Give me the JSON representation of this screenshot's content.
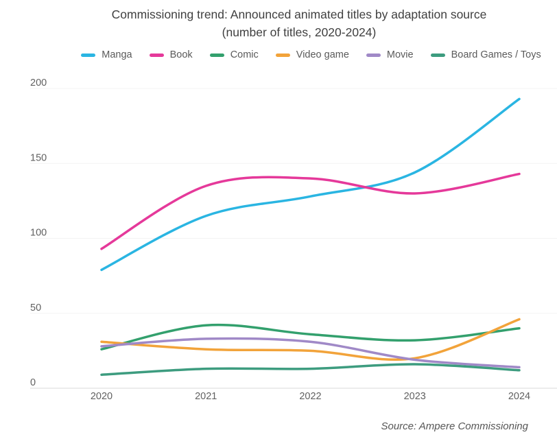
{
  "title": {
    "line1": "Commissioning trend: Announced animated titles by adaptation source",
    "line2": "(number of titles, 2020-2024)"
  },
  "source_note": "Source: Ampere Commissioning",
  "axis": {
    "tick_color": "#616161",
    "grid_color": "#f3f3f3",
    "baseline_color": "#d9d9d9"
  },
  "chart_data": {
    "type": "line",
    "smooth": true,
    "grid": true,
    "legend_position": "top",
    "title": "Commissioning trend: Announced animated titles by adaptation source (number of titles, 2020-2024)",
    "xlabel": "",
    "ylabel": "",
    "categories": [
      "2020",
      "2021",
      "2022",
      "2023",
      "2024"
    ],
    "ylim": [
      0,
      200
    ],
    "yticks": [
      0,
      50,
      100,
      150,
      200
    ],
    "series": [
      {
        "name": "Manga",
        "color": "#2ab5e2",
        "values": [
          79,
          115,
          128,
          144,
          193
        ]
      },
      {
        "name": "Book",
        "color": "#e5399a",
        "values": [
          93,
          135,
          140,
          130,
          143
        ]
      },
      {
        "name": "Comic",
        "color": "#33a06d",
        "values": [
          26,
          42,
          36,
          32,
          40
        ]
      },
      {
        "name": "Video game",
        "color": "#f2a33a",
        "values": [
          31,
          26,
          25,
          20,
          46
        ]
      },
      {
        "name": "Movie",
        "color": "#a089c7",
        "values": [
          28,
          33,
          31,
          19,
          14
        ]
      },
      {
        "name": "Board Games / Toys",
        "color": "#3d9c7f",
        "values": [
          9,
          13,
          13,
          16,
          12
        ]
      }
    ]
  }
}
